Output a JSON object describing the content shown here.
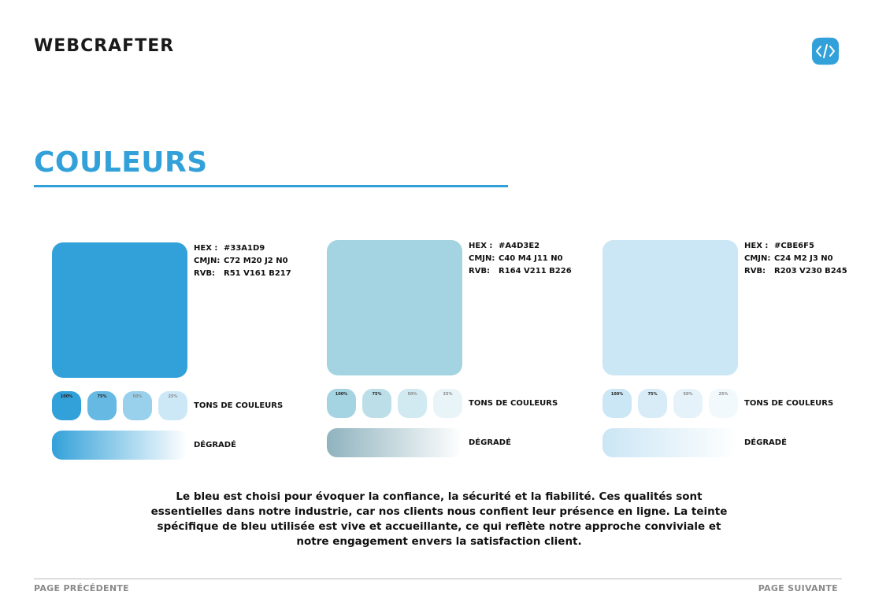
{
  "header": {
    "brand": "WEBCRAFTER",
    "logo_icon": "code-brackets-icon"
  },
  "title": "COULEURS",
  "colors": [
    {
      "hex_label": "HEX :",
      "hex": "#33A1D9",
      "cmjn_label": "CMJN:",
      "cmjn": "C72 M20 J2 N0",
      "rvb_label": "RVB:",
      "rvb": "R51 V161 B217",
      "swatch": "#33A1D9",
      "tones": [
        {
          "label": "100%",
          "color": "#33A1D9"
        },
        {
          "label": "75%",
          "color": "#66B9E3"
        },
        {
          "label": "50%",
          "color": "#99D0EC"
        },
        {
          "label": "25%",
          "color": "#CCE8F6"
        }
      ],
      "tones_label": "TONS DE COULEURS",
      "gradient": [
        "#33A1D9",
        "#ffffff"
      ],
      "gradient_label": "DÉGRADÉ"
    },
    {
      "hex_label": "HEX :",
      "hex": "#A4D3E2",
      "cmjn_label": "CMJN:",
      "cmjn": "C40 M4 J11 N0",
      "rvb_label": "RVB:",
      "rvb": "R164 V211 B226",
      "swatch": "#A4D3E2",
      "tones": [
        {
          "label": "100%",
          "color": "#A4D3E2"
        },
        {
          "label": "75%",
          "color": "#BBDEE9"
        },
        {
          "label": "50%",
          "color": "#D1E9F0"
        },
        {
          "label": "25%",
          "color": "#E8F4F8"
        }
      ],
      "tones_label": "TONS DE COULEURS",
      "gradient": [
        "#8FB3BE",
        "#ffffff"
      ],
      "gradient_label": "DÉGRADÉ"
    },
    {
      "hex_label": "HEX :",
      "hex": "#CBE6F5",
      "cmjn_label": "CMJN:",
      "cmjn": "C24 M2 J3 N0",
      "rvb_label": "RVB:",
      "rvb": "R203 V230 B245",
      "swatch": "#CBE6F5",
      "tones": [
        {
          "label": "100%",
          "color": "#CBE6F5"
        },
        {
          "label": "75%",
          "color": "#D8ECF8"
        },
        {
          "label": "50%",
          "color": "#E5F2FA"
        },
        {
          "label": "25%",
          "color": "#F2F9FD"
        }
      ],
      "tones_label": "TONS DE COULEURS",
      "gradient": [
        "#CBE6F5",
        "#ffffff"
      ],
      "gradient_label": "DÉGRADÉ"
    }
  ],
  "description": "Le bleu est choisi pour évoquer la confiance, la sécurité et la fiabilité. Ces qualités sont essentielles dans notre industrie, car nos clients nous confient leur présence en ligne. La teinte spécifique de bleu utilisée est vive et accueillante, ce qui reflète notre approche conviviale et notre engagement envers la satisfaction client.",
  "footer": {
    "prev": "PAGE PRÉCÉDENTE",
    "next": "PAGE SUIVANTE"
  }
}
